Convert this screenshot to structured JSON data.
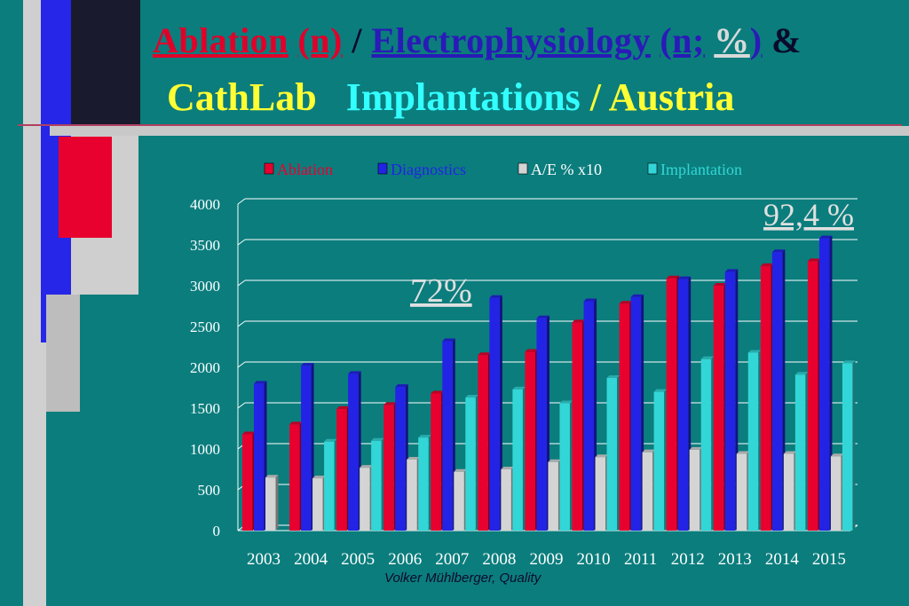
{
  "title": {
    "ablation": "Ablation",
    "n": "(n)",
    "slash": "/",
    "electrophysiology": "Electrophysiology",
    "n_pct_open": "(n;",
    "pct": "%",
    "n_pct_close": ")",
    "amp": "&",
    "cathlab": "CathLab",
    "implantations": "Implantations",
    "slash2": "/",
    "austria": "Austria"
  },
  "colors": {
    "background": "#0b7d7d",
    "ablation": "#e8002f",
    "diagnostics": "#2323e6",
    "ae": "#d4d4d4",
    "implantation": "#33d6d6"
  },
  "chart_data": {
    "type": "bar",
    "categories": [
      "2003",
      "2004",
      "2005",
      "2006",
      "2007",
      "2008",
      "2009",
      "2010",
      "2011",
      "2012",
      "2013",
      "2014",
      "2015"
    ],
    "series": [
      {
        "name": "Ablation",
        "values": [
          1180,
          1300,
          1490,
          1540,
          1680,
          2150,
          2190,
          2550,
          2780,
          3090,
          3000,
          3240,
          3300
        ]
      },
      {
        "name": "Diagnostics",
        "values": [
          1800,
          2020,
          1920,
          1760,
          2320,
          2850,
          2600,
          2810,
          2860,
          3080,
          3170,
          3410,
          3580
        ]
      },
      {
        "name": "A/E % x10",
        "values": [
          650,
          640,
          770,
          870,
          720,
          750,
          840,
          900,
          960,
          990,
          940,
          940,
          910
        ]
      },
      {
        "name": "Implantation",
        "values": [
          0,
          1090,
          1100,
          1140,
          1630,
          1730,
          1560,
          1870,
          1700,
          2100,
          2180,
          1910,
          2050
        ]
      }
    ],
    "ylim": [
      0,
      4000
    ],
    "yticks": [
      "0",
      "500",
      "1000",
      "1500",
      "2000",
      "2500",
      "3000",
      "3500",
      "4000"
    ],
    "grid": true,
    "legend_position": "top",
    "annotations": [
      "72%",
      "92,4 %"
    ]
  },
  "footer": "Volker Mühlberger, Quality"
}
